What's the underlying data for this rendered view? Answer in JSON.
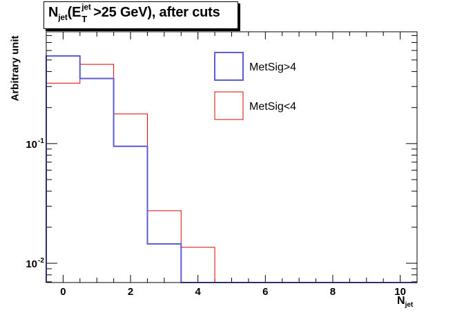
{
  "title": {
    "main": "N",
    "main_sub": "jet",
    "paren_open": "(E",
    "et_sup": "jet",
    "et_sub": "T",
    "rest": ">25 GeV), after cuts"
  },
  "colors": {
    "series_1": "#5b5bd6",
    "series_2": "#e00000",
    "axis": "#000000"
  },
  "chart_data": {
    "type": "histogram",
    "title": "Njet(ET jet>25 GeV), after cuts",
    "xlabel": "N",
    "xlabel_sub": "jet",
    "ylabel": "Arbitrary unit",
    "yscale": "log",
    "xlim": [
      -0.5,
      10.5
    ],
    "ylim": [
      0.0069,
      0.86
    ],
    "bin_edges": [
      -0.5,
      0.5,
      1.5,
      2.5,
      3.5,
      4.5,
      5.5,
      6.5,
      7.5,
      8.5,
      9.5,
      10.5
    ],
    "x_ticks": [
      "0",
      "2",
      "4",
      "6",
      "8",
      "10"
    ],
    "x_tick_values": [
      0,
      2,
      4,
      6,
      8,
      10
    ],
    "y_ticks": [
      {
        "value": 0.1,
        "base": "10",
        "exp": "-1"
      },
      {
        "value": 0.01,
        "base": "10",
        "exp": "-2"
      }
    ],
    "legend_position": "top-center",
    "series": [
      {
        "name": "MetSig>4",
        "color": "#5b5bd6",
        "values": [
          0.54,
          0.35,
          0.095,
          0.0145,
          0,
          0,
          0,
          0,
          0,
          0,
          0
        ]
      },
      {
        "name": "MetSig<4",
        "color": "#e00000",
        "values": [
          0.32,
          0.46,
          0.177,
          0.0275,
          0.0136,
          0,
          0,
          0,
          0,
          0,
          0
        ]
      }
    ]
  }
}
